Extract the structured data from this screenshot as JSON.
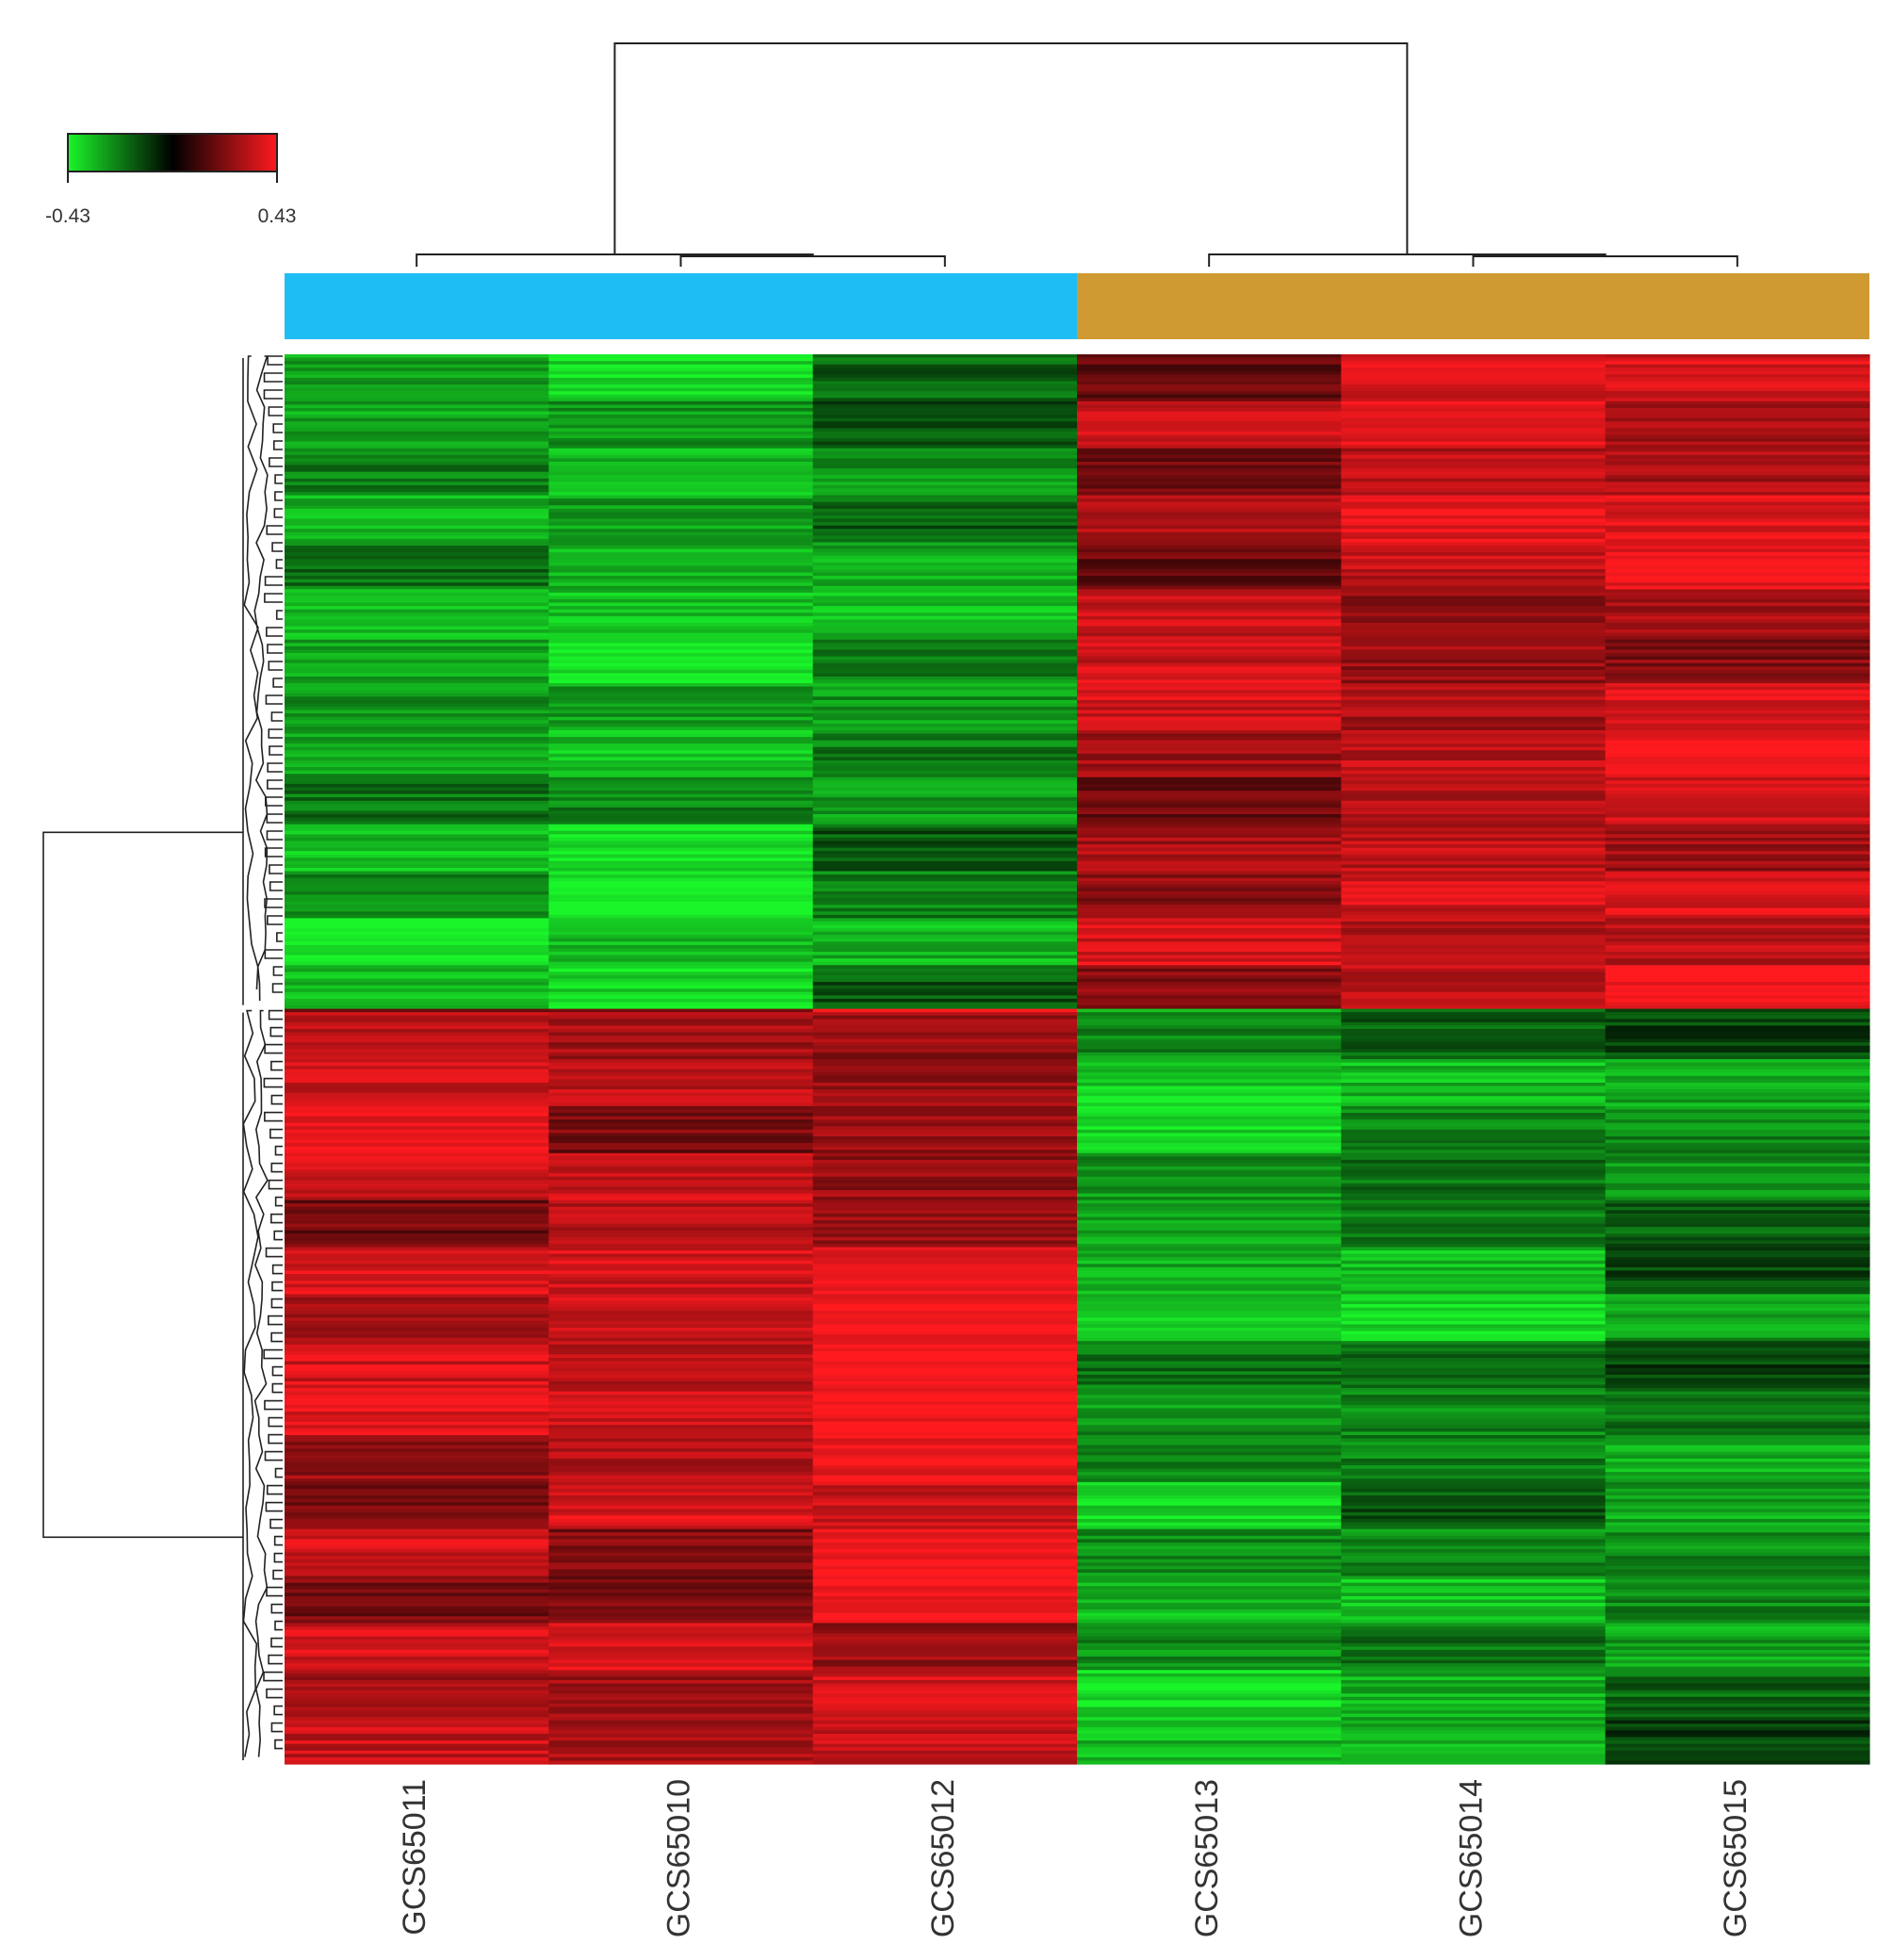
{
  "chart_data": {
    "type": "heatmap",
    "title": "",
    "xlabel": "",
    "ylabel": "",
    "columns": [
      "GCS65011",
      "GCS65010",
      "GCS65012",
      "GCS65013",
      "GCS65014",
      "GCS65015"
    ],
    "column_groups": [
      {
        "columns": [
          "GCS65011",
          "GCS65010",
          "GCS65012"
        ],
        "color": "#1EBEF4"
      },
      {
        "columns": [
          "GCS65013",
          "GCS65014",
          "GCS65015"
        ],
        "color": "#CF9A32"
      }
    ],
    "color_scale": {
      "min": -0.43,
      "max": 0.43,
      "min_label": "-0.43",
      "max_label": "0.43",
      "colors": [
        "#1AF52A",
        "#000000",
        "#FF1A1F"
      ]
    },
    "row_clusters": [
      {
        "name": "",
        "fraction_of_rows": 0.465,
        "mean_values": [
          -0.3,
          -0.32,
          -0.24,
          0.26,
          0.3,
          0.32
        ]
      },
      {
        "name": "",
        "fraction_of_rows": 0.535,
        "mean_values": [
          0.28,
          0.3,
          0.35,
          -0.3,
          -0.26,
          -0.22
        ]
      }
    ],
    "column_dendrogram": true,
    "row_dendrogram": true,
    "legend_position": "top-left",
    "grid": false
  }
}
